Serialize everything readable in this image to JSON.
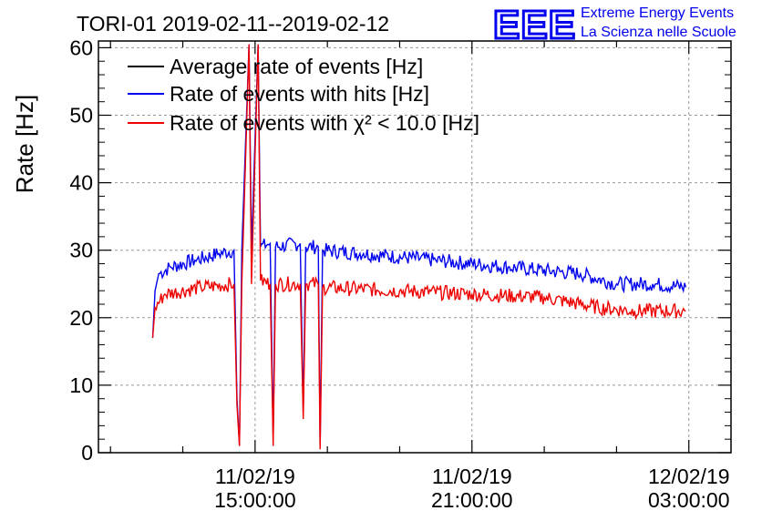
{
  "title": "TORI-01 2019-02-11--2019-02-12",
  "logo": {
    "mark": "EEE",
    "line1": "Extreme Energy Events",
    "line2": "La Scienza nelle Scuole"
  },
  "colors": {
    "average": "#000000",
    "hits": "#0000ee",
    "chi2": "#ee0000",
    "grid": "#999999",
    "logo": "#0000ee"
  },
  "chart_data": {
    "type": "line",
    "ylabel": "Rate [Hz]",
    "ylim": [
      0,
      61
    ],
    "xlim": [
      "2019-02-11 10:40",
      "2019-02-12 04:10"
    ],
    "yticks": [
      0,
      10,
      20,
      30,
      40,
      50,
      60
    ],
    "xticks": [
      {
        "x": "2019-02-11 15:00",
        "line1": "11/02/19",
        "line2": "15:00:00"
      },
      {
        "x": "2019-02-11 21:00",
        "line1": "11/02/19",
        "line2": "21:00:00"
      },
      {
        "x": "2019-02-12 03:00",
        "line1": "12/02/19",
        "line2": "03:00:00"
      }
    ],
    "grid": true,
    "legend_position": "top-left",
    "series": [
      {
        "name": "Average rate of events [Hz]",
        "color": "#000000",
        "points": []
      },
      {
        "name": "Rate of events with hits [Hz]",
        "color": "#0000ee",
        "points": [
          [
            "2019-02-11 12:10",
            17
          ],
          [
            "2019-02-11 12:14",
            24
          ],
          [
            "2019-02-11 12:20",
            26.5
          ],
          [
            "2019-02-11 12:40",
            27.5
          ],
          [
            "2019-02-11 13:20",
            28.5
          ],
          [
            "2019-02-11 14:00",
            29.5
          ],
          [
            "2019-02-11 14:25",
            30
          ],
          [
            "2019-02-11 14:30",
            8
          ],
          [
            "2019-02-11 14:34",
            1
          ],
          [
            "2019-02-11 14:38",
            30
          ],
          [
            "2019-02-11 14:50",
            60.5
          ],
          [
            "2019-02-11 14:54",
            30
          ],
          [
            "2019-02-11 15:05",
            60.5
          ],
          [
            "2019-02-11 15:09",
            30.5
          ],
          [
            "2019-02-11 15:25",
            31
          ],
          [
            "2019-02-11 15:30",
            2
          ],
          [
            "2019-02-11 15:34",
            30.5
          ],
          [
            "2019-02-11 16:15",
            31
          ],
          [
            "2019-02-11 16:20",
            6
          ],
          [
            "2019-02-11 16:24",
            30.5
          ],
          [
            "2019-02-11 16:45",
            30.5
          ],
          [
            "2019-02-11 16:48",
            1
          ],
          [
            "2019-02-11 16:52",
            30
          ],
          [
            "2019-02-11 18:00",
            29.5
          ],
          [
            "2019-02-11 20:00",
            28.5
          ],
          [
            "2019-02-11 22:00",
            27.5
          ],
          [
            "2019-02-12 00:00",
            26.5
          ],
          [
            "2019-02-12 01:00",
            25
          ],
          [
            "2019-02-12 02:00",
            25
          ],
          [
            "2019-02-12 02:55",
            24.5
          ]
        ]
      },
      {
        "name": "Rate of events with χ² < 10.0 [Hz]",
        "color": "#ee0000",
        "points": [
          [
            "2019-02-11 12:10",
            17
          ],
          [
            "2019-02-11 12:14",
            21.5
          ],
          [
            "2019-02-11 12:30",
            23.5
          ],
          [
            "2019-02-11 13:30",
            24.5
          ],
          [
            "2019-02-11 14:25",
            25
          ],
          [
            "2019-02-11 14:30",
            7
          ],
          [
            "2019-02-11 14:34",
            1
          ],
          [
            "2019-02-11 14:38",
            25
          ],
          [
            "2019-02-11 14:50",
            60.5
          ],
          [
            "2019-02-11 14:54",
            25
          ],
          [
            "2019-02-11 15:05",
            60.5
          ],
          [
            "2019-02-11 15:09",
            25.5
          ],
          [
            "2019-02-11 15:25",
            25
          ],
          [
            "2019-02-11 15:30",
            1
          ],
          [
            "2019-02-11 15:34",
            25
          ],
          [
            "2019-02-11 16:15",
            25
          ],
          [
            "2019-02-11 16:20",
            5
          ],
          [
            "2019-02-11 16:24",
            25
          ],
          [
            "2019-02-11 16:45",
            25
          ],
          [
            "2019-02-11 16:48",
            0.5
          ],
          [
            "2019-02-11 16:52",
            24.5
          ],
          [
            "2019-02-11 19:00",
            24
          ],
          [
            "2019-02-11 21:00",
            23.5
          ],
          [
            "2019-02-11 23:00",
            23
          ],
          [
            "2019-02-12 00:30",
            21.5
          ],
          [
            "2019-02-12 01:30",
            21
          ],
          [
            "2019-02-12 02:55",
            21
          ]
        ]
      }
    ]
  }
}
